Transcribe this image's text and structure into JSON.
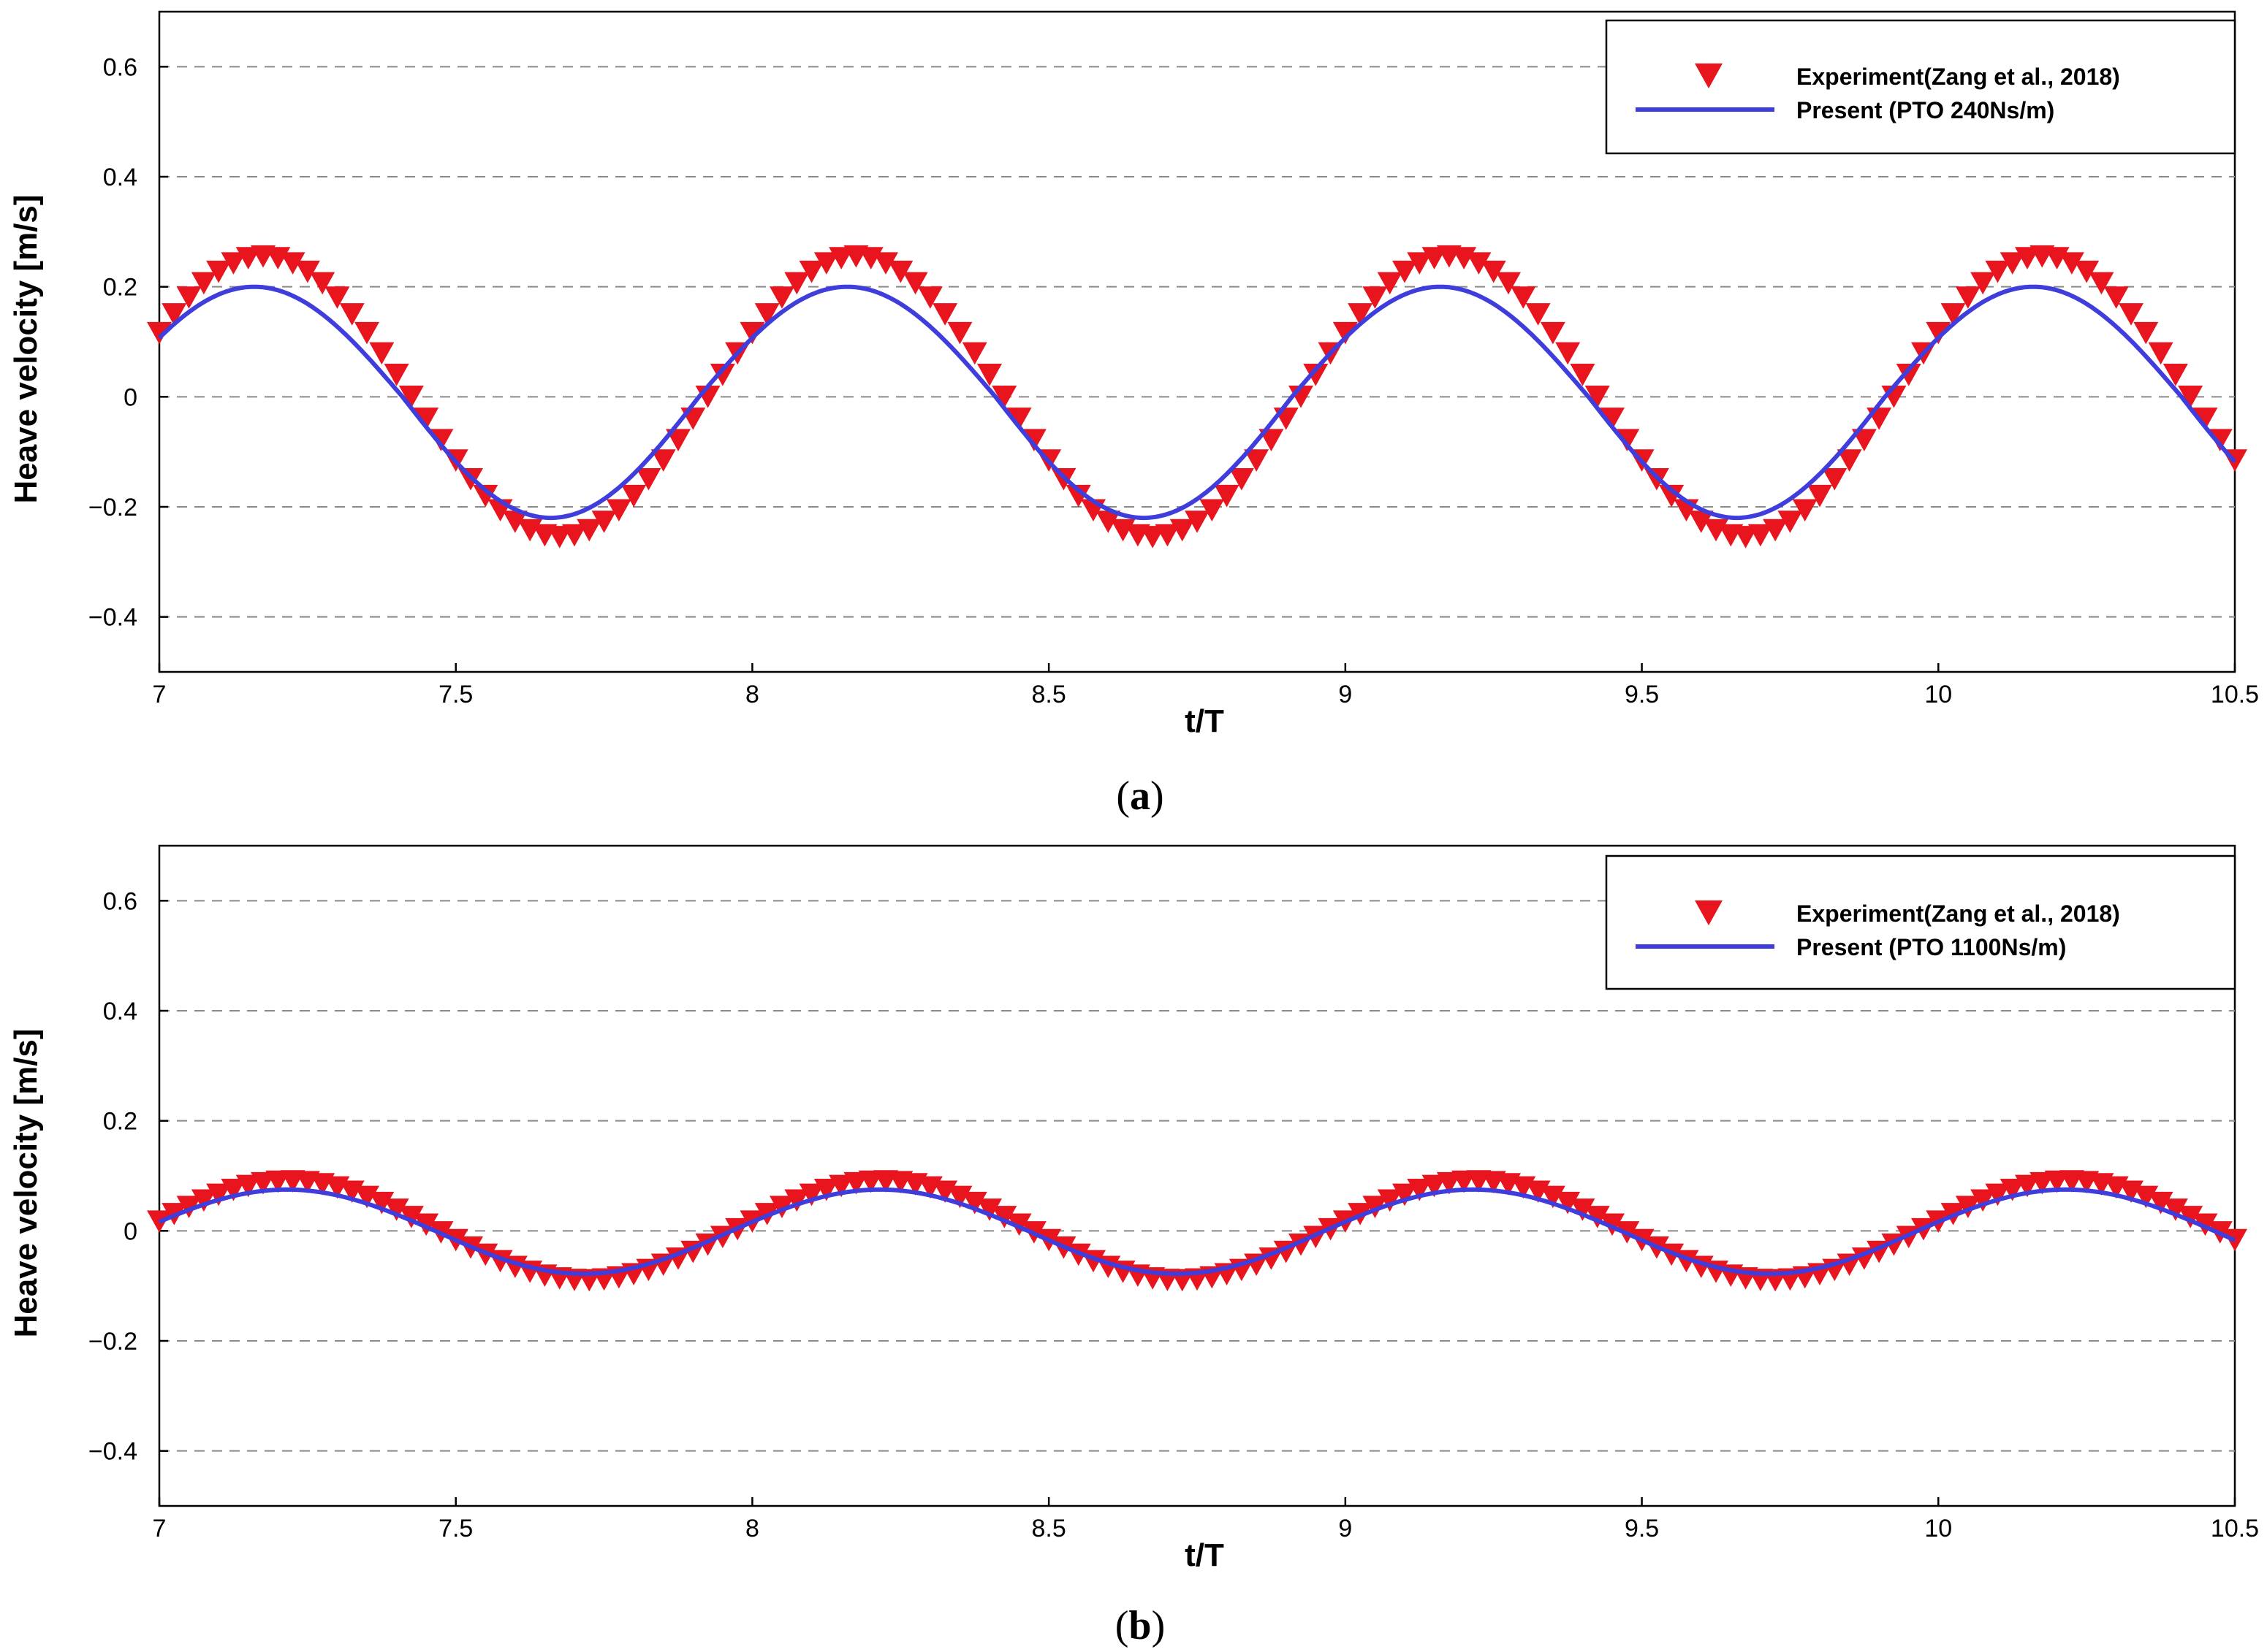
{
  "chart_data": [
    {
      "type": "line",
      "panel_label": "a",
      "caption_open": "(",
      "caption_close": ")",
      "xlabel": "t/T",
      "ylabel": "Heave velocity [m/s]",
      "xlim": [
        7,
        10.5
      ],
      "ylim": [
        -0.5,
        0.7
      ],
      "xticks": [
        7,
        7.5,
        8,
        8.5,
        9,
        9.5,
        10,
        10.5
      ],
      "xtick_labels": [
        "7",
        "7.5",
        "8",
        "8.5",
        "9",
        "9.5",
        "10",
        "10.5"
      ],
      "yticks": [
        -0.4,
        -0.2,
        0,
        0.2,
        0.4,
        0.6
      ],
      "ytick_labels": [
        "−0.4",
        "−0.2",
        "0",
        "0.2",
        "0.4",
        "0.6"
      ],
      "grid": "horizontal dashed",
      "legend_position": "top-right",
      "series": [
        {
          "name": "Experiment(Zang et al., 2018)",
          "kind": "marker",
          "marker": "triangle-down",
          "color": "#e8141e",
          "phase": 0.175,
          "amp_pos": 0.255,
          "amp_neg": 0.255,
          "offset": 0.0,
          "x_start": 7.0,
          "x_end": 10.5,
          "x_step": 0.025
        },
        {
          "name": "Present (PTO 240Ns/m)",
          "kind": "line",
          "color": "#3f3ddb",
          "phase": 0.16,
          "amp_pos": 0.2,
          "amp_neg": 0.22,
          "offset": 0.0,
          "x_start": 7.0,
          "x_end": 10.5,
          "x_step": 0.005
        }
      ]
    },
    {
      "type": "line",
      "panel_label": "b",
      "caption_open": "(",
      "caption_close": ")",
      "xlabel": "t/T",
      "ylabel": "Heave velocity [m/s]",
      "xlim": [
        7,
        10.5
      ],
      "ylim": [
        -0.5,
        0.7
      ],
      "xticks": [
        7,
        7.5,
        8,
        8.5,
        9,
        9.5,
        10,
        10.5
      ],
      "xtick_labels": [
        "7",
        "7.5",
        "8",
        "8.5",
        "9",
        "9.5",
        "10",
        "10.5"
      ],
      "yticks": [
        -0.4,
        -0.2,
        0,
        0.2,
        0.4,
        0.6
      ],
      "ytick_labels": [
        "−0.4",
        "−0.2",
        "0",
        "0.2",
        "0.4",
        "0.6"
      ],
      "grid": "horizontal dashed",
      "legend_position": "top-right",
      "series": [
        {
          "name": "Experiment(Zang et al., 2018)",
          "kind": "marker",
          "marker": "triangle-down",
          "color": "#e8141e",
          "phase": 0.22,
          "amp_pos": 0.09,
          "amp_neg": 0.09,
          "offset": 0.0,
          "x_start": 7.0,
          "x_end": 10.5,
          "x_step": 0.025
        },
        {
          "name": "Present (PTO 1100Ns/m)",
          "kind": "line",
          "color": "#3f3ddb",
          "phase": 0.215,
          "amp_pos": 0.075,
          "amp_neg": 0.078,
          "offset": 0.0,
          "x_start": 7.0,
          "x_end": 10.5,
          "x_step": 0.005
        }
      ]
    }
  ]
}
